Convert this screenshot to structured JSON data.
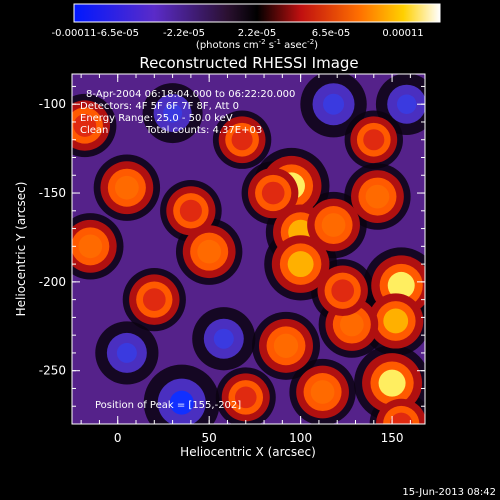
{
  "colors": {
    "background": "#000000",
    "text": "#ffffff"
  },
  "colorbar": {
    "tick_labels": [
      "-0.00011",
      "-6.5e-05",
      "-2.2e-05",
      "2.2e-05",
      "6.5e-05",
      "0.00011"
    ],
    "unit_parts": [
      "(photons cm",
      "-2",
      " s",
      "-1",
      " asec",
      "-2",
      ")"
    ],
    "range": [
      -0.00011,
      0.00011
    ]
  },
  "chart_data": {
    "type": "heatmap",
    "title": "Reconstructed RHESSI Image",
    "xlabel": "Heliocentric X (arcsec)",
    "ylabel": "Heliocentric Y (arcsec)",
    "xlim": [
      -25,
      168
    ],
    "ylim": [
      -280,
      -83
    ],
    "x_ticks": [
      "0",
      "50",
      "100",
      "150"
    ],
    "y_ticks": [
      "-100",
      "-150",
      "-200",
      "-250"
    ],
    "annotations": [
      "8-Apr-2004 06:18:04.000 to 06:22:20.000",
      "Detectors: 4F 5F 6F 7F 8F, Att 0",
      "Energy Range: 25.0 - 50.0 keV",
      "Clean",
      "Total counts: 4.37E+03"
    ],
    "peak_label": "Position of Peak = [155,-202]",
    "peak_position": [
      155,
      -202
    ],
    "colormap": "blue-purple-black-red-yellow-white",
    "hot_spots": [
      {
        "x": 95,
        "y": -146,
        "v": 1.0
      },
      {
        "x": 100,
        "y": -172,
        "v": 0.8
      },
      {
        "x": 100,
        "y": -190,
        "v": 0.9
      },
      {
        "x": 50,
        "y": -183,
        "v": 0.7
      },
      {
        "x": 85,
        "y": -150,
        "v": 0.6
      },
      {
        "x": 118,
        "y": -168,
        "v": 0.7
      },
      {
        "x": 142,
        "y": -152,
        "v": 0.7
      },
      {
        "x": 155,
        "y": -202,
        "v": 1.0
      },
      {
        "x": 112,
        "y": -262,
        "v": 0.7
      },
      {
        "x": 150,
        "y": -257,
        "v": 1.0
      },
      {
        "x": 152,
        "y": -222,
        "v": 0.8
      },
      {
        "x": 128,
        "y": -224,
        "v": 0.7
      },
      {
        "x": 92,
        "y": -236,
        "v": 0.75
      },
      {
        "x": 5,
        "y": -147,
        "v": 0.7
      },
      {
        "x": -18,
        "y": -112,
        "v": 0.6
      },
      {
        "x": -15,
        "y": -180,
        "v": 0.7
      },
      {
        "x": 20,
        "y": -210,
        "v": 0.6
      },
      {
        "x": 40,
        "y": -160,
        "v": 0.55
      },
      {
        "x": 68,
        "y": -120,
        "v": 0.45
      },
      {
        "x": 123,
        "y": -205,
        "v": 0.6
      },
      {
        "x": 140,
        "y": -120,
        "v": 0.45
      },
      {
        "x": 70,
        "y": -265,
        "v": 0.5
      },
      {
        "x": 155,
        "y": -280,
        "v": 0.6
      }
    ],
    "cold_spots": [
      {
        "x": 35,
        "y": -268,
        "v": -1.0
      },
      {
        "x": 118,
        "y": -100,
        "v": -0.7
      },
      {
        "x": 5,
        "y": -240,
        "v": -0.6
      },
      {
        "x": 58,
        "y": -232,
        "v": -0.6
      },
      {
        "x": 158,
        "y": -100,
        "v": -0.55
      },
      {
        "x": 30,
        "y": -105,
        "v": -0.5
      }
    ]
  },
  "footer": {
    "timestamp": "15-Jun-2013 08:42"
  }
}
